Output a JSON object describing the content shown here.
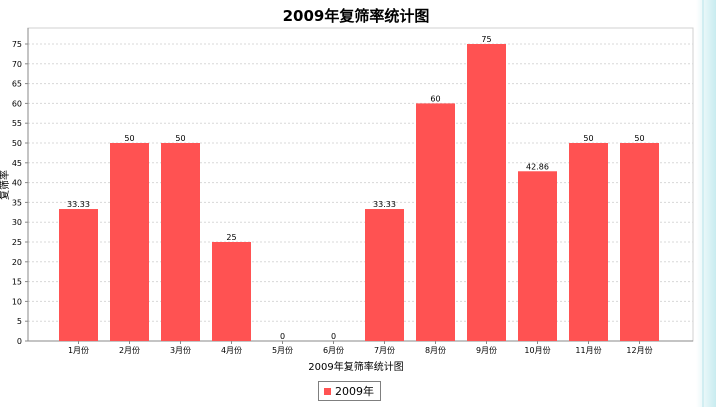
{
  "chart_data": {
    "type": "bar",
    "title": "2009年复筛率统计图",
    "xlabel": "2009年复筛率统计图",
    "ylabel": "复筛率",
    "ylim": [
      0,
      75
    ],
    "yticks": [
      0,
      5,
      10,
      15,
      20,
      25,
      30,
      35,
      40,
      45,
      50,
      55,
      60,
      65,
      70,
      75
    ],
    "grid": true,
    "legend_position": "bottom-center",
    "categories": [
      "1月份",
      "2月份",
      "3月份",
      "4月份",
      "5月份",
      "6月份",
      "7月份",
      "8月份",
      "9月份",
      "10月份",
      "11月份",
      "12月份"
    ],
    "series": [
      {
        "name": "2009年",
        "color": "#ff5252",
        "values": [
          33.33,
          50,
          50,
          25,
          0,
          0,
          33.33,
          60,
          75,
          42.86,
          50,
          50
        ],
        "labels": [
          "33.33",
          "50",
          "50",
          "25",
          "0",
          "0",
          "33.33",
          "60",
          "75",
          "42.86",
          "50",
          "50"
        ]
      }
    ]
  }
}
